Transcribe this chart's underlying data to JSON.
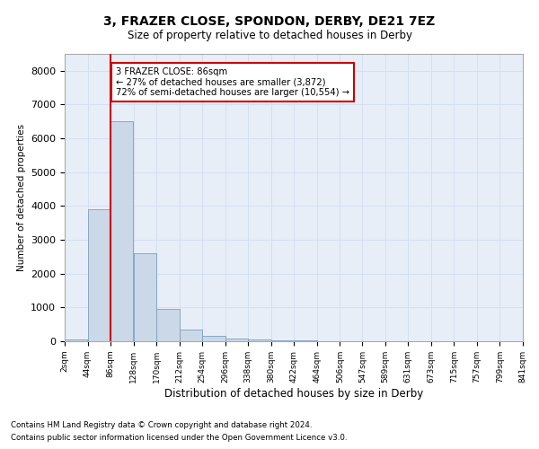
{
  "title1": "3, FRAZER CLOSE, SPONDON, DERBY, DE21 7EZ",
  "title2": "Size of property relative to detached houses in Derby",
  "xlabel": "Distribution of detached houses by size in Derby",
  "ylabel": "Number of detached properties",
  "footnote1": "Contains HM Land Registry data © Crown copyright and database right 2024.",
  "footnote2": "Contains public sector information licensed under the Open Government Licence v3.0.",
  "annotation_line1": "3 FRAZER CLOSE: 86sqm",
  "annotation_line2": "← 27% of detached houses are smaller (3,872)",
  "annotation_line3": "72% of semi-detached houses are larger (10,554) →",
  "property_size": 86,
  "bin_edges": [
    2,
    44,
    86,
    128,
    170,
    212,
    254,
    296,
    338,
    380,
    422,
    464,
    506,
    547,
    589,
    631,
    673,
    715,
    757,
    799,
    841
  ],
  "bar_heights": [
    50,
    3900,
    6500,
    2600,
    950,
    350,
    150,
    80,
    50,
    30,
    20,
    10,
    5,
    3,
    2,
    1,
    1,
    0,
    0,
    0
  ],
  "bar_color": "#cad8e8",
  "bar_edge_color": "#7aa0be",
  "grid_color": "#d4dff0",
  "vline_color": "#cc0000",
  "annotation_box_color": "#cc0000",
  "background_color": "#e8eef8",
  "ylim": [
    0,
    8500
  ],
  "yticks": [
    0,
    1000,
    2000,
    3000,
    4000,
    5000,
    6000,
    7000,
    8000
  ]
}
